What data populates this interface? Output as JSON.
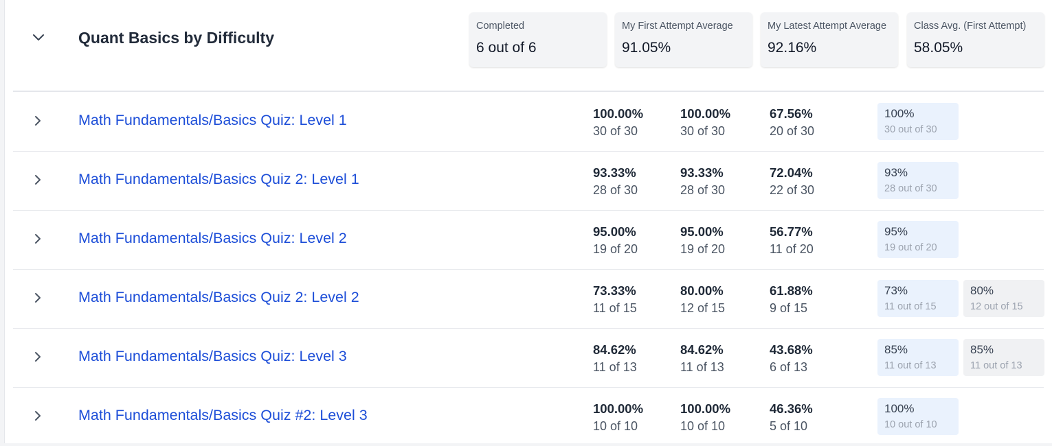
{
  "header": {
    "title": "Quant Basics by Difficulty",
    "stats": [
      {
        "label": "Completed",
        "value": "6 out of 6"
      },
      {
        "label": "My First Attempt Average",
        "value": "91.05%"
      },
      {
        "label": "My Latest Attempt Average",
        "value": "92.16%"
      },
      {
        "label": "Class Avg. (First Attempt)",
        "value": "58.05%"
      }
    ]
  },
  "quizzes": [
    {
      "title": "Math Fundamentals/Basics Quiz: Level 1",
      "first": {
        "pct": "100.00%",
        "count": "30 of 30"
      },
      "latest": {
        "pct": "100.00%",
        "count": "30 of 30"
      },
      "class_avg": {
        "pct": "67.56%",
        "count": "20 of 30"
      },
      "attempts": [
        {
          "pct": "100%",
          "count": "30 out of 30"
        }
      ]
    },
    {
      "title": "Math Fundamentals/Basics Quiz 2: Level 1",
      "first": {
        "pct": "93.33%",
        "count": "28 of 30"
      },
      "latest": {
        "pct": "93.33%",
        "count": "28 of 30"
      },
      "class_avg": {
        "pct": "72.04%",
        "count": "22 of 30"
      },
      "attempts": [
        {
          "pct": "93%",
          "count": "28 out of 30"
        }
      ]
    },
    {
      "title": "Math Fundamentals/Basics Quiz: Level 2",
      "first": {
        "pct": "95.00%",
        "count": "19 of 20"
      },
      "latest": {
        "pct": "95.00%",
        "count": "19 of 20"
      },
      "class_avg": {
        "pct": "56.77%",
        "count": "11 of 20"
      },
      "attempts": [
        {
          "pct": "95%",
          "count": "19 out of 20"
        }
      ]
    },
    {
      "title": "Math Fundamentals/Basics Quiz 2: Level 2",
      "first": {
        "pct": "73.33%",
        "count": "11 of 15"
      },
      "latest": {
        "pct": "80.00%",
        "count": "12 of 15"
      },
      "class_avg": {
        "pct": "61.88%",
        "count": "9 of 15"
      },
      "attempts": [
        {
          "pct": "73%",
          "count": "11 out of 15"
        },
        {
          "pct": "80%",
          "count": "12 out of 15"
        }
      ]
    },
    {
      "title": "Math Fundamentals/Basics Quiz: Level 3",
      "first": {
        "pct": "84.62%",
        "count": "11 of 13"
      },
      "latest": {
        "pct": "84.62%",
        "count": "11 of 13"
      },
      "class_avg": {
        "pct": "43.68%",
        "count": "6 of 13"
      },
      "attempts": [
        {
          "pct": "85%",
          "count": "11 out of 13"
        },
        {
          "pct": "85%",
          "count": "11 out of 13"
        }
      ]
    },
    {
      "title": "Math Fundamentals/Basics Quiz #2: Level 3",
      "first": {
        "pct": "100.00%",
        "count": "10 of 10"
      },
      "latest": {
        "pct": "100.00%",
        "count": "10 of 10"
      },
      "class_avg": {
        "pct": "46.36%",
        "count": "5 of 10"
      },
      "attempts": [
        {
          "pct": "100%",
          "count": "10 out of 10"
        }
      ]
    }
  ]
}
